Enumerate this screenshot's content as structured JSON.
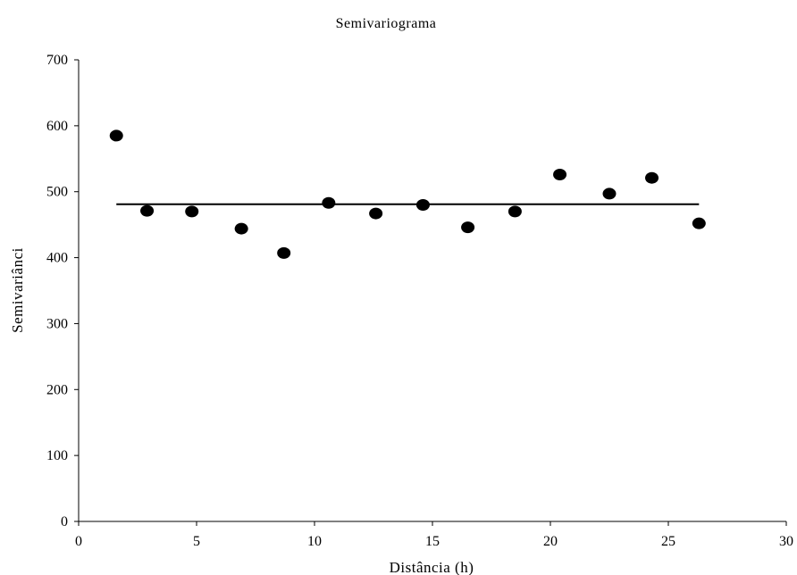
{
  "chart_data": {
    "type": "scatter",
    "title": "Semivariograma",
    "xlabel": "Distância (h)",
    "ylabel": "Semivariânci",
    "xlim": [
      0,
      30
    ],
    "ylim": [
      0,
      700
    ],
    "xticks": [
      0,
      5,
      10,
      15,
      20,
      25,
      30
    ],
    "yticks": [
      0,
      100,
      200,
      300,
      400,
      500,
      600,
      700
    ],
    "grid": false,
    "legend": "none",
    "series": [
      {
        "type": "scatter",
        "color": "#000000",
        "points": [
          {
            "x": 1.6,
            "y": 585
          },
          {
            "x": 2.9,
            "y": 471
          },
          {
            "x": 4.8,
            "y": 470
          },
          {
            "x": 6.9,
            "y": 444
          },
          {
            "x": 8.7,
            "y": 407
          },
          {
            "x": 10.6,
            "y": 483
          },
          {
            "x": 12.6,
            "y": 467
          },
          {
            "x": 14.6,
            "y": 480
          },
          {
            "x": 16.5,
            "y": 446
          },
          {
            "x": 18.5,
            "y": 470
          },
          {
            "x": 20.4,
            "y": 526
          },
          {
            "x": 22.5,
            "y": 497
          },
          {
            "x": 24.3,
            "y": 521
          },
          {
            "x": 26.3,
            "y": 452
          }
        ]
      },
      {
        "type": "line",
        "color": "#000000",
        "points": [
          {
            "x": 1.6,
            "y": 481
          },
          {
            "x": 26.3,
            "y": 481
          }
        ]
      }
    ]
  }
}
